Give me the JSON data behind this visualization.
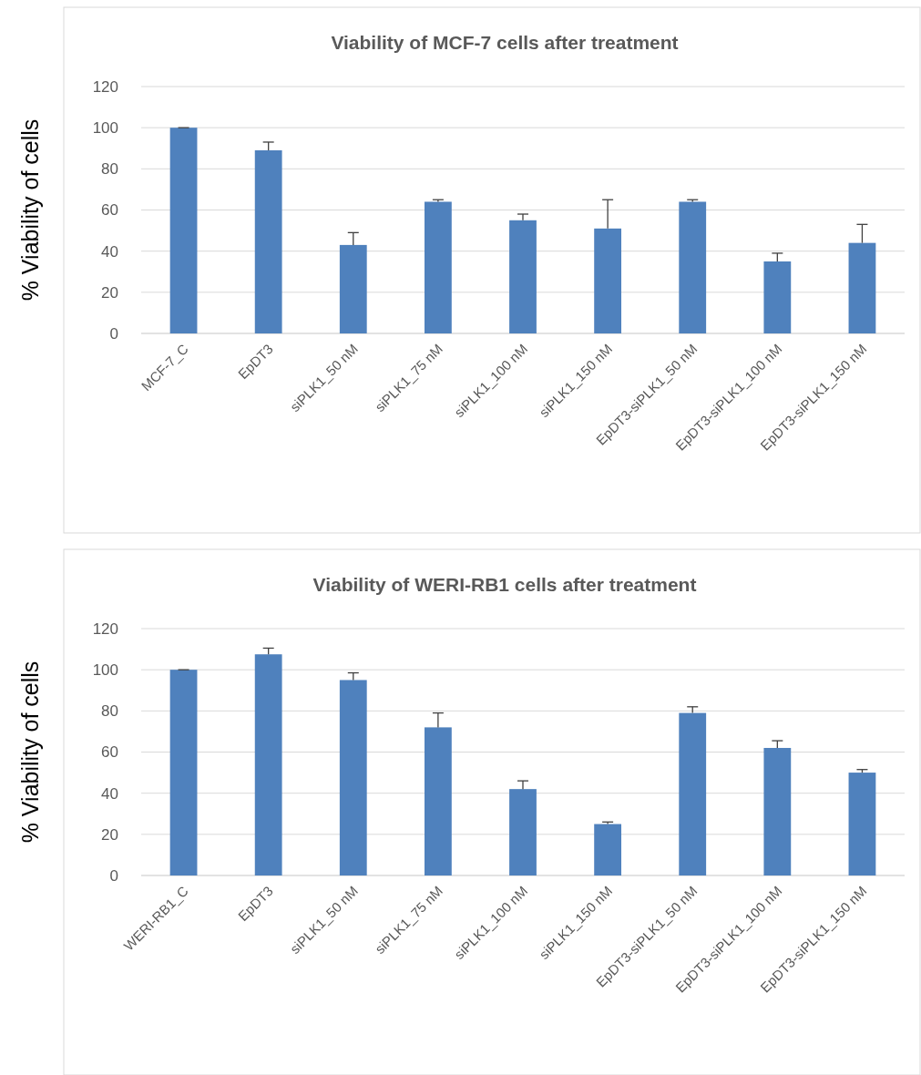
{
  "chart_data": [
    {
      "type": "bar",
      "title": "Viability of MCF-7 cells after treatment",
      "ylabel": "% Viability of cells",
      "categories": [
        "MCF-7_C",
        "EpDT3",
        "siPLK1_50 nM",
        "siPLK1_75 nM",
        "siPLK1_100 nM",
        "siPLK1_150 nM",
        "EpDT3-siPLK1_50 nM",
        "EpDT3-siPLK1_100 nM",
        "EpDT3-siPLK1_150 nM"
      ],
      "values": [
        100,
        89,
        43,
        64,
        55,
        51,
        64,
        35,
        44
      ],
      "errors": [
        [
          100,
          100
        ],
        [
          89,
          93
        ],
        [
          43,
          49
        ],
        [
          64,
          65
        ],
        [
          55,
          58
        ],
        [
          51,
          65
        ],
        [
          64,
          65
        ],
        [
          35,
          39
        ],
        [
          44,
          53
        ]
      ],
      "color": "#4f81bd",
      "ylim": [
        0,
        120
      ],
      "yticks": [
        0,
        20,
        40,
        60,
        80,
        100,
        120
      ],
      "grid": "y"
    },
    {
      "type": "bar",
      "title": "Viability of WERI-RB1 cells after treatment",
      "ylabel": "% Viability of cells",
      "categories": [
        "WERI-RB1_C",
        "EpDT3",
        "siPLK1_50 nM",
        "siPLK1_75 nM",
        "siPLK1_100 nM",
        "siPLK1_150 nM",
        "EpDT3-siPLK1_50 nM",
        "EpDT3-siPLK1_100 nM",
        "EpDT3-siPLK1_150 nM"
      ],
      "values": [
        100,
        107.5,
        95,
        72,
        42,
        25,
        79,
        62,
        50
      ],
      "errors": [
        [
          100,
          100
        ],
        [
          107.5,
          110.5
        ],
        [
          95,
          98.5
        ],
        [
          72,
          79
        ],
        [
          42,
          46
        ],
        [
          25,
          26
        ],
        [
          79,
          82
        ],
        [
          62,
          65.5
        ],
        [
          50,
          51.5
        ]
      ],
      "color": "#4f81bd",
      "ylim": [
        0,
        120
      ],
      "yticks": [
        0,
        20,
        40,
        60,
        80,
        100,
        120
      ],
      "grid": "y"
    }
  ]
}
